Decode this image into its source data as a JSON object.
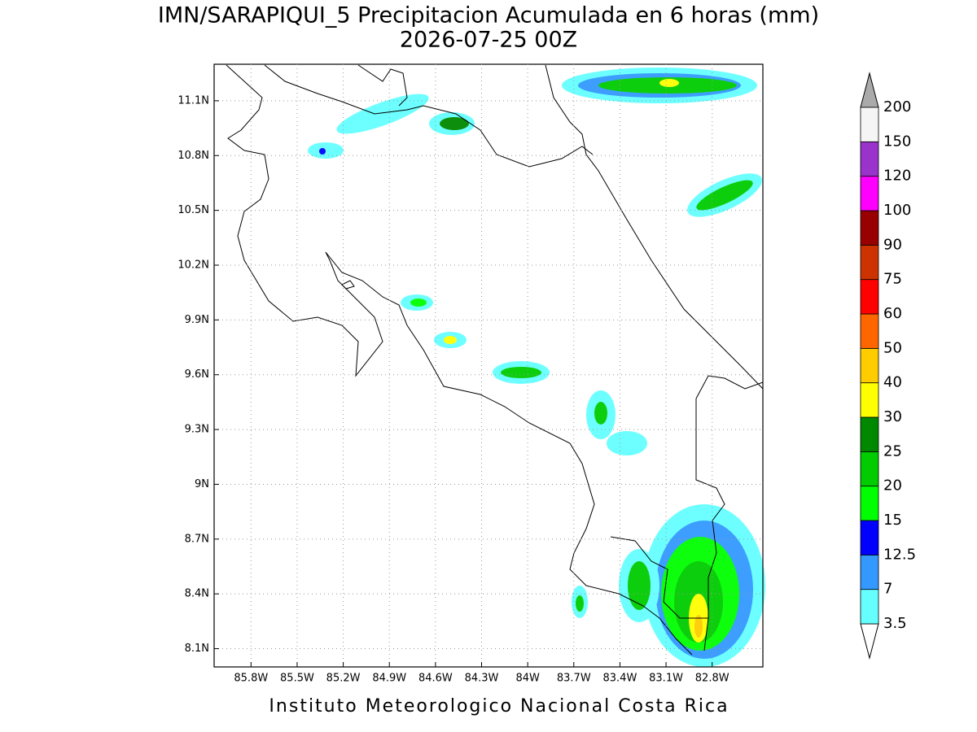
{
  "title": "IMN/SARAPIQUI_5 Precipitacion Acumulada en 6 horas (mm)",
  "subtitle": "2026-07-25 00Z",
  "footer": "Instituto Meteorologico Nacional Costa Rica",
  "map": {
    "xlim": [
      -86.04,
      -82.47
    ],
    "ylim": [
      8.0,
      11.3
    ],
    "grid": true,
    "xticks": [
      {
        "value": -85.8,
        "label": "85.8W"
      },
      {
        "value": -85.5,
        "label": "85.5W"
      },
      {
        "value": -85.2,
        "label": "85.2W"
      },
      {
        "value": -84.9,
        "label": "84.9W"
      },
      {
        "value": -84.6,
        "label": "84.6W"
      },
      {
        "value": -84.3,
        "label": "84.3W"
      },
      {
        "value": -84,
        "label": "84W"
      },
      {
        "value": -83.7,
        "label": "83.7W"
      },
      {
        "value": -83.4,
        "label": "83.4W"
      },
      {
        "value": -83.1,
        "label": "83.1W"
      },
      {
        "value": -82.8,
        "label": "82.8W"
      }
    ],
    "yticks": [
      {
        "value": 8.1,
        "label": "8.1N"
      },
      {
        "value": 8.4,
        "label": "8.4N"
      },
      {
        "value": 8.7,
        "label": "8.7N"
      },
      {
        "value": 9,
        "label": "9N"
      },
      {
        "value": 9.3,
        "label": "9.3N"
      },
      {
        "value": 9.6,
        "label": "9.6N"
      },
      {
        "value": 9.9,
        "label": "9.9N"
      },
      {
        "value": 10.2,
        "label": "10.2N"
      },
      {
        "value": 10.5,
        "label": "10.5N"
      },
      {
        "value": 10.8,
        "label": "10.8N"
      },
      {
        "value": 11.1,
        "label": "11.1N"
      }
    ]
  },
  "colorbar": {
    "levels": [
      3.5,
      7,
      12.5,
      15,
      20,
      25,
      30,
      40,
      50,
      60,
      75,
      90,
      100,
      120,
      150,
      200
    ],
    "colors": [
      "#66ffff",
      "#3399ff",
      "#0000ff",
      "#00ff00",
      "#00cc00",
      "#008800",
      "#ffff00",
      "#ffcc00",
      "#ff6600",
      "#ff0000",
      "#cc3300",
      "#990000",
      "#ff00ff",
      "#9933cc",
      "#f5f5f5"
    ],
    "under_color": "#ffffff",
    "over_color": "#aaaaaa"
  }
}
